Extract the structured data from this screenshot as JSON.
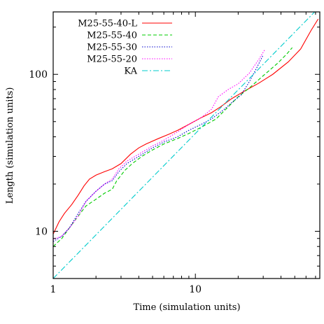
{
  "chart_data": {
    "type": "line",
    "title": "",
    "xlabel": "Time (simulation units)",
    "ylabel": "Length (simulation units)",
    "xscale": "log",
    "yscale": "log",
    "xlim": [
      1,
      75
    ],
    "ylim": [
      5,
      250
    ],
    "x_ticks": [
      {
        "value": 1,
        "label": "1"
      },
      {
        "value": 10,
        "label": "10"
      }
    ],
    "y_ticks": [
      {
        "value": 10,
        "label": "10"
      },
      {
        "value": 100,
        "label": "100"
      }
    ],
    "grid": false,
    "legend_position": "top-left",
    "series": [
      {
        "name": "M25-55-40-L",
        "color": "#ff0000",
        "dash": "solid",
        "points": [
          [
            1.0,
            9.6
          ],
          [
            1.1,
            11.5
          ],
          [
            1.2,
            13.0
          ],
          [
            1.35,
            14.8
          ],
          [
            1.5,
            17.0
          ],
          [
            1.65,
            19.5
          ],
          [
            1.8,
            21.5
          ],
          [
            2.0,
            22.8
          ],
          [
            2.3,
            24.0
          ],
          [
            2.6,
            25.0
          ],
          [
            3.0,
            27.0
          ],
          [
            3.5,
            31.0
          ],
          [
            4.0,
            34.0
          ],
          [
            4.5,
            36.0
          ],
          [
            5.5,
            39.0
          ],
          [
            6.5,
            41.5
          ],
          [
            7.5,
            44.0
          ],
          [
            9.0,
            48.0
          ],
          [
            11.0,
            53.0
          ],
          [
            13.0,
            57.0
          ],
          [
            15.0,
            62.0
          ],
          [
            18.0,
            70.0
          ],
          [
            22.0,
            78.0
          ],
          [
            28.0,
            88.0
          ],
          [
            35.0,
            100.0
          ],
          [
            45.0,
            120.0
          ],
          [
            55.0,
            145.0
          ],
          [
            65.0,
            190.0
          ],
          [
            73.0,
            225.0
          ]
        ]
      },
      {
        "name": "M25-55-40",
        "color": "#00cc00",
        "dash": "dashed",
        "points": [
          [
            1.0,
            8.0
          ],
          [
            1.15,
            9.0
          ],
          [
            1.3,
            10.5
          ],
          [
            1.5,
            12.5
          ],
          [
            1.7,
            14.5
          ],
          [
            2.0,
            16.0
          ],
          [
            2.3,
            17.5
          ],
          [
            2.6,
            18.5
          ],
          [
            2.8,
            21.0
          ],
          [
            3.2,
            24.5
          ],
          [
            3.6,
            27.0
          ],
          [
            4.2,
            30.0
          ],
          [
            5.0,
            33.0
          ],
          [
            6.0,
            36.0
          ],
          [
            7.5,
            39.0
          ],
          [
            9.0,
            42.0
          ],
          [
            11.0,
            46.0
          ],
          [
            14.0,
            52.0
          ],
          [
            17.0,
            62.0
          ],
          [
            20.0,
            72.0
          ],
          [
            24.0,
            82.0
          ],
          [
            30.0,
            98.0
          ],
          [
            38.0,
            118.0
          ],
          [
            44.0,
            135.0
          ],
          [
            48.0,
            148.0
          ]
        ]
      },
      {
        "name": "M25-55-30",
        "color": "#0000cc",
        "dash": "dotted",
        "points": [
          [
            1.0,
            8.6
          ],
          [
            1.15,
            9.3
          ],
          [
            1.3,
            10.5
          ],
          [
            1.5,
            13.0
          ],
          [
            1.7,
            15.5
          ],
          [
            2.0,
            18.0
          ],
          [
            2.3,
            20.0
          ],
          [
            2.6,
            21.0
          ],
          [
            2.9,
            24.0
          ],
          [
            3.3,
            27.0
          ],
          [
            4.0,
            30.0
          ],
          [
            5.0,
            34.0
          ],
          [
            6.0,
            37.0
          ],
          [
            7.5,
            40.0
          ],
          [
            9.0,
            44.0
          ],
          [
            11.0,
            48.0
          ],
          [
            13.0,
            52.0
          ],
          [
            16.0,
            60.0
          ],
          [
            18.0,
            66.0
          ],
          [
            21.0,
            74.0
          ],
          [
            24.0,
            90.0
          ],
          [
            27.0,
            110.0
          ],
          [
            30.0,
            133.0
          ]
        ]
      },
      {
        "name": "M25-55-20",
        "color": "#ff00ff",
        "dash": "dotted",
        "points": [
          [
            1.0,
            8.9
          ],
          [
            1.15,
            9.3
          ],
          [
            1.3,
            10.5
          ],
          [
            1.5,
            12.5
          ],
          [
            1.7,
            15.5
          ],
          [
            2.0,
            18.0
          ],
          [
            2.3,
            20.0
          ],
          [
            2.6,
            21.5
          ],
          [
            2.9,
            25.0
          ],
          [
            3.3,
            28.0
          ],
          [
            4.0,
            31.0
          ],
          [
            5.0,
            35.0
          ],
          [
            6.0,
            38.0
          ],
          [
            7.5,
            43.0
          ],
          [
            9.0,
            48.0
          ],
          [
            11.0,
            53.0
          ],
          [
            13.0,
            60.0
          ],
          [
            14.5,
            72.0
          ],
          [
            17.0,
            80.0
          ],
          [
            20.0,
            87.0
          ],
          [
            24.0,
            102.0
          ],
          [
            28.0,
            125.0
          ],
          [
            31.0,
            145.0
          ]
        ]
      },
      {
        "name": "KA",
        "color": "#00cccc",
        "dash": "dashdot",
        "points": [
          [
            1.0,
            5.0
          ],
          [
            75.0,
            270.0
          ]
        ]
      }
    ]
  }
}
